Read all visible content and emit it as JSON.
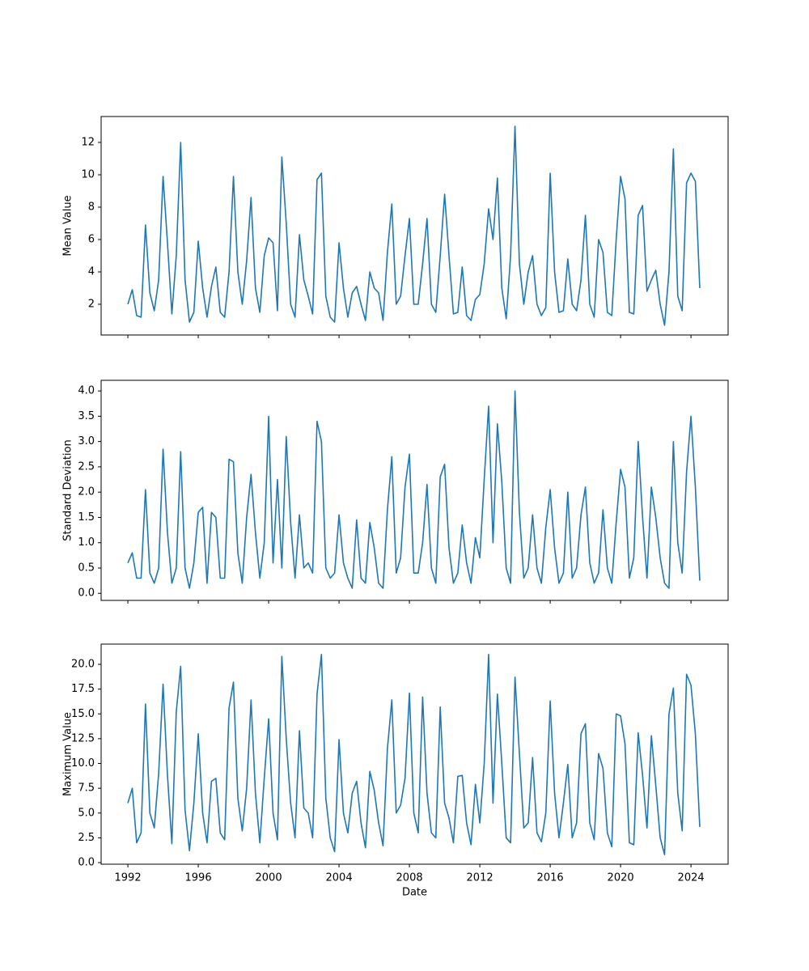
{
  "chart_data": [
    {
      "type": "line",
      "ylabel": "Mean Value",
      "color": "#1f77b4",
      "x": [
        1992,
        1992.25,
        1992.5,
        1992.75,
        1993,
        1993.25,
        1993.5,
        1993.75,
        1994,
        1994.25,
        1994.5,
        1994.75,
        1995,
        1995.25,
        1995.5,
        1995.75,
        1996,
        1996.25,
        1996.5,
        1996.75,
        1997,
        1997.25,
        1997.5,
        1997.75,
        1998,
        1998.25,
        1998.5,
        1998.75,
        1999,
        1999.25,
        1999.5,
        1999.75,
        2000,
        2000.25,
        2000.5,
        2000.75,
        2001,
        2001.25,
        2001.5,
        2001.75,
        2002,
        2002.25,
        2002.5,
        2002.75,
        2003,
        2003.25,
        2003.5,
        2003.75,
        2004,
        2004.25,
        2004.5,
        2004.75,
        2005,
        2005.25,
        2005.5,
        2005.75,
        2006,
        2006.25,
        2006.5,
        2006.75,
        2007,
        2007.25,
        2007.5,
        2007.75,
        2008,
        2008.25,
        2008.5,
        2008.75,
        2009,
        2009.25,
        2009.5,
        2009.75,
        2010,
        2010.25,
        2010.5,
        2010.75,
        2011,
        2011.25,
        2011.5,
        2011.75,
        2012,
        2012.25,
        2012.5,
        2012.75,
        2013,
        2013.25,
        2013.5,
        2013.75,
        2014,
        2014.25,
        2014.5,
        2014.75,
        2015,
        2015.25,
        2015.5,
        2015.75,
        2016,
        2016.25,
        2016.5,
        2016.75,
        2017,
        2017.25,
        2017.5,
        2017.75,
        2018,
        2018.25,
        2018.5,
        2018.75,
        2019,
        2019.25,
        2019.5,
        2019.75,
        2020,
        2020.25,
        2020.5,
        2020.75,
        2021,
        2021.25,
        2021.5,
        2021.75,
        2022,
        2022.25,
        2022.5,
        2022.75,
        2023,
        2023.25,
        2023.5,
        2023.75,
        2024,
        2024.25,
        2024.5
      ],
      "values": [
        2.0,
        2.9,
        1.3,
        1.2,
        6.9,
        2.7,
        1.6,
        3.5,
        9.9,
        5.8,
        1.4,
        5.0,
        12.0,
        3.5,
        0.9,
        1.5,
        5.9,
        3.0,
        1.2,
        3.1,
        4.3,
        1.5,
        1.2,
        4.0,
        9.9,
        4.0,
        2.0,
        4.7,
        8.6,
        3.0,
        1.5,
        5.0,
        6.1,
        5.8,
        1.6,
        11.1,
        7.0,
        2.0,
        1.2,
        6.3,
        3.5,
        2.5,
        1.4,
        9.7,
        10.1,
        2.5,
        1.2,
        0.9,
        5.8,
        3.0,
        1.2,
        2.7,
        3.1,
        2.0,
        1.0,
        4.0,
        3.0,
        2.7,
        1.0,
        5.2,
        8.2,
        2.0,
        2.5,
        5.0,
        7.3,
        2.0,
        2.0,
        4.5,
        7.3,
        2.0,
        1.5,
        5.0,
        8.8,
        5.0,
        1.4,
        1.5,
        4.3,
        1.3,
        1.0,
        2.3,
        2.6,
        4.5,
        7.9,
        6.0,
        9.8,
        3.0,
        1.1,
        5.0,
        13.0,
        4.5,
        2.0,
        4.0,
        5.0,
        2.0,
        1.3,
        1.8,
        10.1,
        4.0,
        1.5,
        1.6,
        4.8,
        2.0,
        1.6,
        3.5,
        7.5,
        2.0,
        1.2,
        6.0,
        5.2,
        1.5,
        1.3,
        6.0,
        9.9,
        8.5,
        1.5,
        1.4,
        7.5,
        8.1,
        2.8,
        3.5,
        4.1,
        2.0,
        0.7,
        4.0,
        11.6,
        2.5,
        1.6,
        9.5,
        10.1,
        9.6,
        3.0
      ],
      "xlim": [
        1990.48,
        2026.11
      ],
      "xticks": [
        1992,
        1996,
        2000,
        2004,
        2008,
        2012,
        2016,
        2020,
        2024
      ],
      "ylim": [
        0.1,
        13.6
      ],
      "yticks": [
        2,
        4,
        6,
        8,
        10,
        12
      ]
    },
    {
      "type": "line",
      "ylabel": "Standard Deviation",
      "color": "#1f77b4",
      "x": [
        1992,
        1992.25,
        1992.5,
        1992.75,
        1993,
        1993.25,
        1993.5,
        1993.75,
        1994,
        1994.25,
        1994.5,
        1994.75,
        1995,
        1995.25,
        1995.5,
        1995.75,
        1996,
        1996.25,
        1996.5,
        1996.75,
        1997,
        1997.25,
        1997.5,
        1997.75,
        1998,
        1998.25,
        1998.5,
        1998.75,
        1999,
        1999.25,
        1999.5,
        1999.75,
        2000,
        2000.25,
        2000.5,
        2000.75,
        2001,
        2001.25,
        2001.5,
        2001.75,
        2002,
        2002.25,
        2002.5,
        2002.75,
        2003,
        2003.25,
        2003.5,
        2003.75,
        2004,
        2004.25,
        2004.5,
        2004.75,
        2005,
        2005.25,
        2005.5,
        2005.75,
        2006,
        2006.25,
        2006.5,
        2006.75,
        2007,
        2007.25,
        2007.5,
        2007.75,
        2008,
        2008.25,
        2008.5,
        2008.75,
        2009,
        2009.25,
        2009.5,
        2009.75,
        2010,
        2010.25,
        2010.5,
        2010.75,
        2011,
        2011.25,
        2011.5,
        2011.75,
        2012,
        2012.25,
        2012.5,
        2012.75,
        2013,
        2013.25,
        2013.5,
        2013.75,
        2014,
        2014.25,
        2014.5,
        2014.75,
        2015,
        2015.25,
        2015.5,
        2015.75,
        2016,
        2016.25,
        2016.5,
        2016.75,
        2017,
        2017.25,
        2017.5,
        2017.75,
        2018,
        2018.25,
        2018.5,
        2018.75,
        2019,
        2019.25,
        2019.5,
        2019.75,
        2020,
        2020.25,
        2020.5,
        2020.75,
        2021,
        2021.25,
        2021.5,
        2021.75,
        2022,
        2022.25,
        2022.5,
        2022.75,
        2023,
        2023.25,
        2023.5,
        2023.75,
        2024,
        2024.25,
        2024.5
      ],
      "values": [
        0.6,
        0.8,
        0.3,
        0.3,
        2.05,
        0.4,
        0.2,
        0.5,
        2.85,
        1.2,
        0.2,
        0.5,
        2.8,
        0.5,
        0.1,
        0.6,
        1.6,
        1.7,
        0.2,
        1.6,
        1.5,
        0.3,
        0.3,
        2.65,
        2.6,
        0.8,
        0.2,
        1.5,
        2.35,
        1.2,
        0.3,
        1.0,
        3.5,
        0.6,
        2.25,
        0.5,
        3.1,
        1.4,
        0.3,
        1.55,
        0.5,
        0.6,
        0.4,
        3.4,
        3.0,
        0.5,
        0.3,
        0.4,
        1.55,
        0.6,
        0.3,
        0.1,
        1.45,
        0.3,
        0.2,
        1.4,
        0.9,
        0.2,
        0.1,
        1.65,
        2.7,
        0.4,
        0.7,
        2.1,
        2.75,
        0.4,
        0.4,
        1.0,
        2.15,
        0.5,
        0.2,
        2.3,
        2.55,
        0.9,
        0.2,
        0.4,
        1.35,
        0.6,
        0.2,
        1.1,
        0.7,
        2.25,
        3.7,
        1.0,
        3.35,
        2.2,
        0.5,
        0.2,
        4.0,
        1.6,
        0.3,
        0.5,
        1.55,
        0.5,
        0.2,
        1.3,
        2.05,
        0.9,
        0.2,
        0.4,
        2.0,
        0.3,
        0.5,
        1.55,
        2.1,
        0.6,
        0.2,
        0.4,
        1.65,
        0.5,
        0.2,
        1.4,
        2.45,
        2.1,
        0.3,
        0.7,
        3.0,
        1.5,
        0.3,
        2.1,
        1.5,
        0.7,
        0.2,
        0.1,
        3.0,
        1.0,
        0.4,
        2.4,
        3.5,
        2.1,
        0.25
      ],
      "xlim": [
        1990.48,
        2026.11
      ],
      "xticks": [
        1992,
        1996,
        2000,
        2004,
        2008,
        2012,
        2016,
        2020,
        2024
      ],
      "ylim": [
        -0.14,
        4.21
      ],
      "yticks": [
        {
          "value": 0,
          "label": "0.0"
        },
        {
          "value": 0.5,
          "label": "0.5"
        },
        {
          "value": 1,
          "label": "1.0"
        },
        {
          "value": 1.5,
          "label": "1.5"
        },
        {
          "value": 2,
          "label": "2.0"
        },
        {
          "value": 2.5,
          "label": "2.5"
        },
        {
          "value": 3,
          "label": "3.0"
        },
        {
          "value": 3.5,
          "label": "3.5"
        },
        {
          "value": 4,
          "label": "4.0"
        }
      ]
    },
    {
      "type": "line",
      "ylabel": "Maximum Value",
      "xlabel": "Date",
      "color": "#1f77b4",
      "x": [
        1992,
        1992.25,
        1992.5,
        1992.75,
        1993,
        1993.25,
        1993.5,
        1993.75,
        1994,
        1994.25,
        1994.5,
        1994.75,
        1995,
        1995.25,
        1995.5,
        1995.75,
        1996,
        1996.25,
        1996.5,
        1996.75,
        1997,
        1997.25,
        1997.5,
        1997.75,
        1998,
        1998.25,
        1998.5,
        1998.75,
        1999,
        1999.25,
        1999.5,
        1999.75,
        2000,
        2000.25,
        2000.5,
        2000.75,
        2001,
        2001.25,
        2001.5,
        2001.75,
        2002,
        2002.25,
        2002.5,
        2002.75,
        2003,
        2003.25,
        2003.5,
        2003.75,
        2004,
        2004.25,
        2004.5,
        2004.75,
        2005,
        2005.25,
        2005.5,
        2005.75,
        2006,
        2006.25,
        2006.5,
        2006.75,
        2007,
        2007.25,
        2007.5,
        2007.75,
        2008,
        2008.25,
        2008.5,
        2008.75,
        2009,
        2009.25,
        2009.5,
        2009.75,
        2010,
        2010.25,
        2010.5,
        2010.75,
        2011,
        2011.25,
        2011.5,
        2011.75,
        2012,
        2012.25,
        2012.5,
        2012.75,
        2013,
        2013.25,
        2013.5,
        2013.75,
        2014,
        2014.25,
        2014.5,
        2014.75,
        2015,
        2015.25,
        2015.5,
        2015.75,
        2016,
        2016.25,
        2016.5,
        2016.75,
        2017,
        2017.25,
        2017.5,
        2017.75,
        2018,
        2018.25,
        2018.5,
        2018.75,
        2019,
        2019.25,
        2019.5,
        2019.75,
        2020,
        2020.25,
        2020.5,
        2020.75,
        2021,
        2021.25,
        2021.5,
        2021.75,
        2022,
        2022.25,
        2022.5,
        2022.75,
        2023,
        2023.25,
        2023.5,
        2023.75,
        2024,
        2024.25,
        2024.5
      ],
      "values": [
        6.0,
        7.5,
        2.0,
        3.0,
        16.0,
        5.0,
        3.5,
        9.0,
        18.0,
        8.8,
        1.9,
        15.2,
        19.8,
        5.3,
        1.2,
        6.0,
        13.0,
        5.0,
        2.0,
        8.2,
        8.5,
        3.0,
        2.3,
        15.6,
        18.2,
        6.5,
        3.2,
        7.5,
        16.4,
        7.0,
        2.0,
        8.5,
        14.5,
        5.0,
        2.3,
        20.8,
        12.5,
        6.0,
        2.5,
        13.3,
        5.5,
        5.0,
        2.5,
        17.0,
        21.0,
        6.5,
        2.5,
        1.1,
        12.4,
        5.0,
        3.0,
        7.0,
        8.2,
        4.0,
        1.5,
        9.2,
        7.3,
        4.0,
        1.7,
        11.5,
        16.4,
        5.0,
        5.8,
        8.5,
        17.1,
        5.0,
        3.0,
        16.7,
        7.0,
        3.0,
        2.5,
        15.7,
        6.0,
        4.5,
        2.0,
        8.7,
        8.8,
        4.0,
        1.8,
        7.9,
        4.0,
        10.0,
        21.0,
        6.0,
        17.0,
        10.0,
        2.5,
        2.0,
        18.7,
        11.0,
        3.5,
        4.0,
        10.6,
        3.0,
        2.1,
        5.0,
        16.3,
        7.0,
        2.5,
        6.0,
        9.9,
        2.5,
        4.0,
        13.0,
        14.0,
        4.0,
        2.3,
        11.0,
        9.5,
        3.0,
        1.6,
        15.0,
        14.8,
        12.0,
        2.0,
        1.8,
        13.1,
        8.8,
        3.5,
        12.8,
        7.8,
        2.5,
        0.8,
        15.0,
        17.6,
        7.0,
        3.2,
        19.0,
        17.9,
        13.0,
        3.6
      ],
      "xlim": [
        1990.48,
        2026.11
      ],
      "xticks": [
        1992,
        1996,
        2000,
        2004,
        2008,
        2012,
        2016,
        2020,
        2024
      ],
      "ylim": [
        -0.16,
        22.04
      ],
      "yticks": [
        {
          "value": 0,
          "label": "0.0"
        },
        {
          "value": 2.5,
          "label": "2.5"
        },
        {
          "value": 5,
          "label": "5.0"
        },
        {
          "value": 7.5,
          "label": "7.5"
        },
        {
          "value": 10,
          "label": "10.0"
        },
        {
          "value": 12.5,
          "label": "12.5"
        },
        {
          "value": 15,
          "label": "15.0"
        },
        {
          "value": 17.5,
          "label": "17.5"
        },
        {
          "value": 20,
          "label": "20.0"
        }
      ]
    }
  ]
}
